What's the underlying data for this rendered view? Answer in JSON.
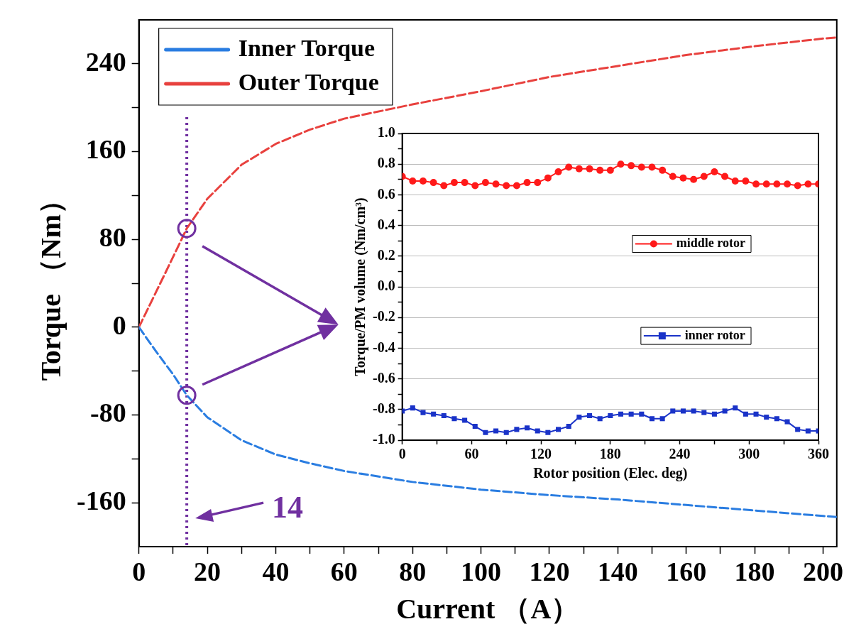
{
  "chart_data": [
    {
      "type": "line",
      "xlabel": "Current （A）",
      "ylabel": "Torque （Nm）",
      "xlim": [
        0,
        204
      ],
      "ylim": [
        -200,
        280
      ],
      "xticks": [
        0,
        {
          "value": 10,
          "label": null
        },
        20,
        {
          "value": 30,
          "label": null
        },
        40,
        {
          "value": 50,
          "label": null
        },
        60,
        {
          "value": 70,
          "label": null
        },
        80,
        {
          "value": 90,
          "label": null
        },
        100,
        {
          "value": 110,
          "label": null
        },
        120,
        {
          "value": 130,
          "label": null
        },
        140,
        {
          "value": 150,
          "label": null
        },
        160,
        {
          "value": 170,
          "label": null
        },
        180,
        {
          "value": 190,
          "label": null
        },
        200
      ],
      "yticks": [
        -160,
        {
          "value": -120,
          "label": null
        },
        -80,
        {
          "value": -40,
          "label": null
        },
        0,
        {
          "value": 40,
          "label": null
        },
        80,
        {
          "value": 120,
          "label": null
        },
        160,
        {
          "value": 200,
          "label": null
        },
        240
      ],
      "grid": false,
      "legend": "top left",
      "line_style": "dashed",
      "marker": "none",
      "x": [
        0,
        5,
        10,
        14,
        20,
        30,
        40,
        50,
        60,
        80,
        100,
        120,
        140,
        160,
        180,
        200,
        204
      ],
      "series": [
        {
          "name": "Inner Torque",
          "color": "#2a7de1",
          "values": [
            0,
            -22,
            -43,
            -62,
            -82,
            -103,
            -116,
            -124,
            -131,
            -141,
            -148,
            -153,
            -157,
            -162,
            -167,
            -172,
            -173
          ]
        },
        {
          "name": "Outer Torque",
          "color": "#e8413e",
          "values": [
            0,
            32,
            64,
            90,
            117,
            148,
            167,
            180,
            190,
            203,
            215,
            228,
            238,
            248,
            256,
            263,
            264
          ]
        }
      ],
      "ref_lines": [
        {
          "axis": "x",
          "value": 14,
          "label": "14",
          "color": "#7030a0",
          "line_style": "dotted"
        }
      ]
    },
    {
      "type": "line",
      "xlabel": "Rotor position (Elec. deg)",
      "ylabel": "Torque/PM volume (Nm/cm³)",
      "xlim": [
        0,
        360
      ],
      "ylim": [
        -1,
        1
      ],
      "xticks": [
        0,
        {
          "value": 30,
          "label": null
        },
        60,
        {
          "value": 90,
          "label": null
        },
        120,
        {
          "value": 150,
          "label": null
        },
        180,
        {
          "value": 210,
          "label": null
        },
        240,
        {
          "value": 270,
          "label": null
        },
        300,
        {
          "value": 330,
          "label": null
        },
        360
      ],
      "yticks": [
        {
          "value": -1,
          "label": "-1.0"
        },
        {
          "value": -0.9,
          "label": null
        },
        {
          "value": -0.8,
          "label": "-0.8"
        },
        {
          "value": -0.7,
          "label": null
        },
        {
          "value": -0.6,
          "label": "-0.6"
        },
        {
          "value": -0.5,
          "label": null
        },
        {
          "value": -0.4,
          "label": "-0.4"
        },
        {
          "value": -0.3,
          "label": null
        },
        {
          "value": -0.2,
          "label": "-0.2"
        },
        {
          "value": -0.1,
          "label": null
        },
        {
          "value": 0,
          "label": "0.0"
        },
        {
          "value": 0.1,
          "label": null
        },
        {
          "value": 0.2,
          "label": "0.2"
        },
        {
          "value": 0.3,
          "label": null
        },
        {
          "value": 0.4,
          "label": "0.4"
        },
        {
          "value": 0.5,
          "label": null
        },
        {
          "value": 0.6,
          "label": "0.6"
        },
        {
          "value": 0.7,
          "label": null
        },
        {
          "value": 0.8,
          "label": "0.8"
        },
        {
          "value": 0.9,
          "label": null
        },
        {
          "value": 1,
          "label": "1.0"
        }
      ],
      "grid": "y",
      "legend": "right",
      "line_style": "solid",
      "x": [
        0,
        9,
        18,
        27,
        36,
        45,
        54,
        63,
        72,
        81,
        90,
        99,
        108,
        117,
        126,
        135,
        144,
        153,
        162,
        171,
        180,
        189,
        198,
        207,
        216,
        225,
        234,
        243,
        252,
        261,
        270,
        279,
        288,
        297,
        306,
        315,
        324,
        333,
        342,
        351,
        360
      ],
      "series": [
        {
          "name": "middle rotor",
          "color": "#ff1a1a",
          "marker": "circle",
          "values": [
            0.72,
            0.69,
            0.69,
            0.68,
            0.66,
            0.68,
            0.68,
            0.66,
            0.68,
            0.67,
            0.66,
            0.66,
            0.68,
            0.68,
            0.71,
            0.75,
            0.78,
            0.77,
            0.77,
            0.76,
            0.76,
            0.8,
            0.79,
            0.78,
            0.78,
            0.76,
            0.72,
            0.71,
            0.7,
            0.72,
            0.75,
            0.72,
            0.69,
            0.69,
            0.67,
            0.67,
            0.67,
            0.67,
            0.66,
            0.67,
            0.67
          ]
        },
        {
          "name": "inner rotor",
          "color": "#1a33c8",
          "marker": "square",
          "values": [
            -0.81,
            -0.79,
            -0.82,
            -0.83,
            -0.84,
            -0.86,
            -0.87,
            -0.91,
            -0.95,
            -0.94,
            -0.95,
            -0.93,
            -0.92,
            -0.94,
            -0.95,
            -0.93,
            -0.91,
            -0.85,
            -0.84,
            -0.86,
            -0.84,
            -0.83,
            -0.83,
            -0.83,
            -0.86,
            -0.86,
            -0.81,
            -0.81,
            -0.81,
            -0.82,
            -0.83,
            -0.81,
            -0.79,
            -0.83,
            -0.83,
            -0.85,
            -0.86,
            -0.88,
            -0.93,
            -0.94,
            -0.94
          ]
        }
      ]
    }
  ]
}
